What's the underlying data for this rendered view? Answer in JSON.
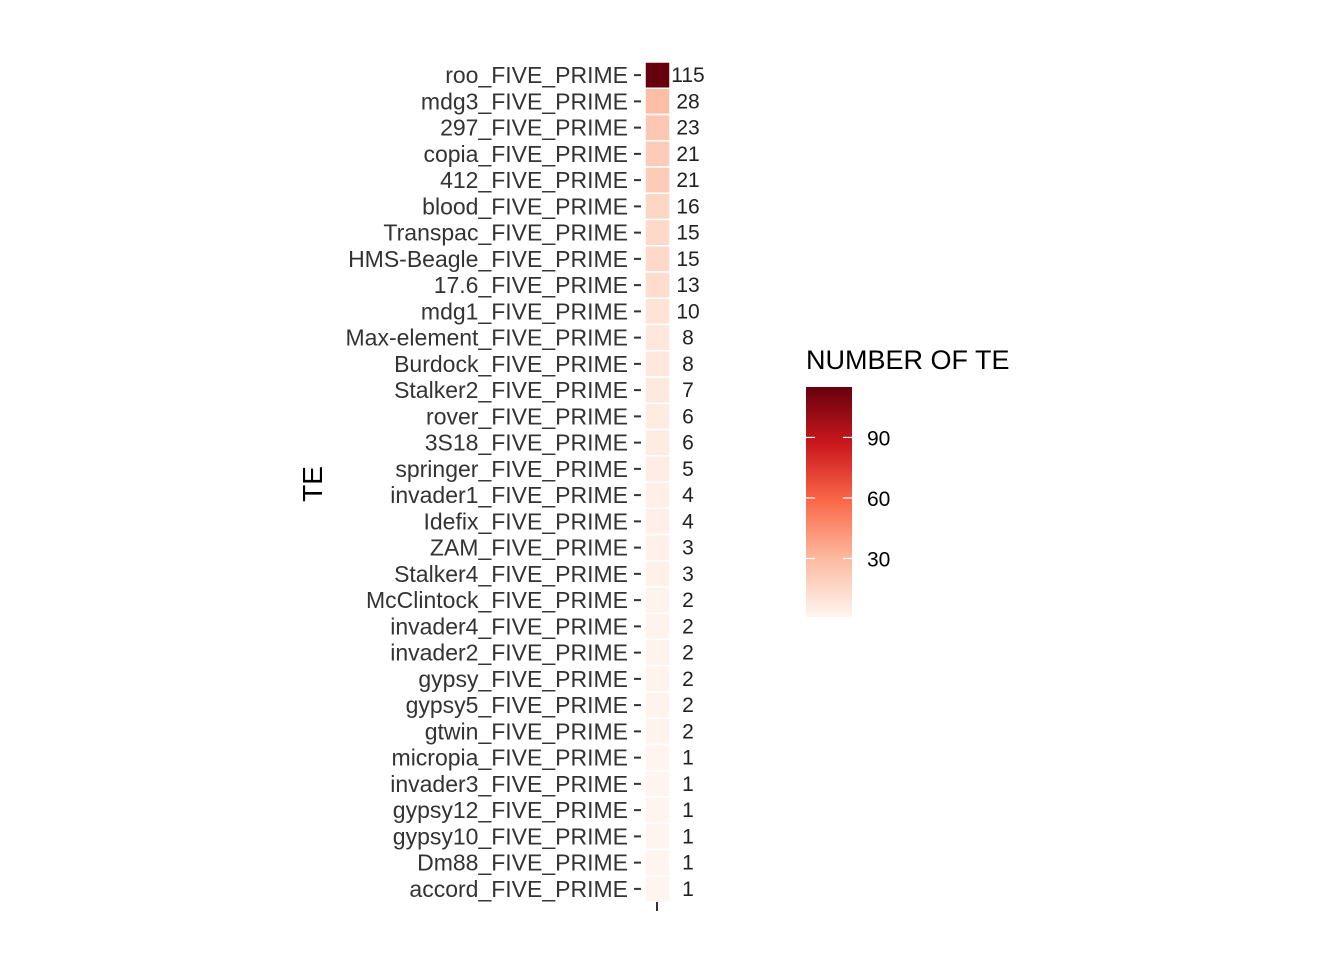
{
  "chart_data": {
    "type": "heatmap",
    "ylabel": "TE",
    "xlabel": "",
    "categories": [
      "roo_FIVE_PRIME",
      "mdg3_FIVE_PRIME",
      "297_FIVE_PRIME",
      "copia_FIVE_PRIME",
      "412_FIVE_PRIME",
      "blood_FIVE_PRIME",
      "Transpac_FIVE_PRIME",
      "HMS-Beagle_FIVE_PRIME",
      "17.6_FIVE_PRIME",
      "mdg1_FIVE_PRIME",
      "Max-element_FIVE_PRIME",
      "Burdock_FIVE_PRIME",
      "Stalker2_FIVE_PRIME",
      "rover_FIVE_PRIME",
      "3S18_FIVE_PRIME",
      "springer_FIVE_PRIME",
      "invader1_FIVE_PRIME",
      "Idefix_FIVE_PRIME",
      "ZAM_FIVE_PRIME",
      "Stalker4_FIVE_PRIME",
      "McClintock_FIVE_PRIME",
      "invader4_FIVE_PRIME",
      "invader2_FIVE_PRIME",
      "gypsy_FIVE_PRIME",
      "gypsy5_FIVE_PRIME",
      "gtwin_FIVE_PRIME",
      "micropia_FIVE_PRIME",
      "invader3_FIVE_PRIME",
      "gypsy12_FIVE_PRIME",
      "gypsy10_FIVE_PRIME",
      "Dm88_FIVE_PRIME",
      "accord_FIVE_PRIME"
    ],
    "values": [
      115,
      28,
      23,
      21,
      21,
      16,
      15,
      15,
      13,
      10,
      8,
      8,
      7,
      6,
      6,
      5,
      4,
      4,
      3,
      3,
      2,
      2,
      2,
      2,
      2,
      2,
      1,
      1,
      1,
      1,
      1,
      1
    ],
    "legend": {
      "title": "NUMBER OF TE",
      "ticks": [
        30,
        60,
        90
      ],
      "range": [
        1,
        115
      ],
      "placement": "right"
    },
    "colors": {
      "low": "#fff5f0",
      "mid1": "#fcbba1",
      "mid2": "#fb6a4a",
      "mid3": "#cb181d",
      "high": "#67000d",
      "tile_border": "#ffffff",
      "label": "#333333"
    },
    "grid": false
  }
}
